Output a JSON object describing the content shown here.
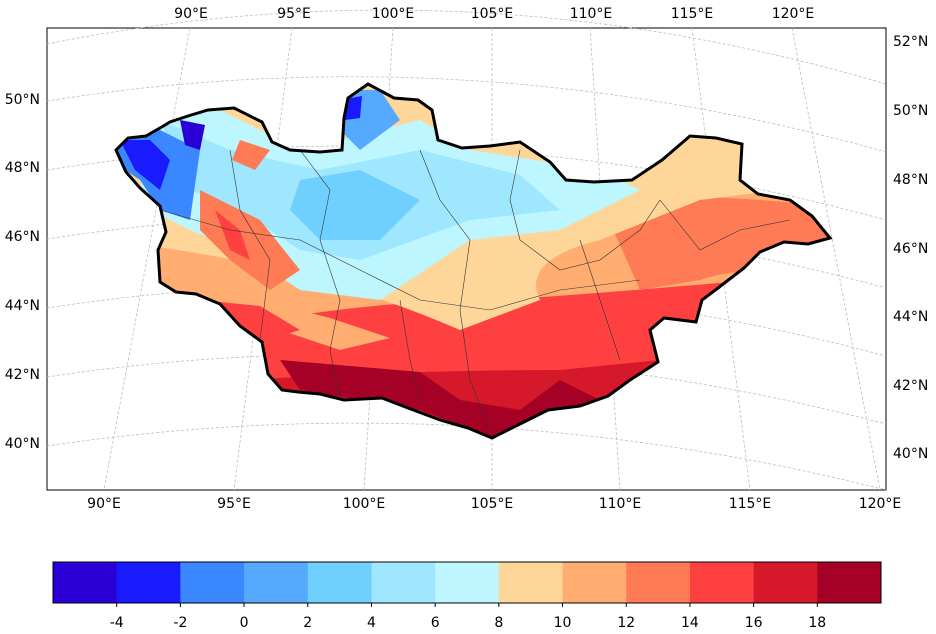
{
  "map": {
    "top_lon_labels": [
      "90°E",
      "95°E",
      "100°E",
      "105°E",
      "110°E",
      "115°E",
      "120°E"
    ],
    "bottom_lon_labels": [
      "90°E",
      "95°E",
      "100°E",
      "105°E",
      "110°E",
      "115°E",
      "120°E"
    ],
    "left_lat_labels": [
      "50°N",
      "48°N",
      "46°N",
      "44°N",
      "42°N",
      "40°N"
    ],
    "right_lat_labels": [
      "52°N",
      "50°N",
      "48°N",
      "46°N",
      "44°N",
      "42°N",
      "40°N"
    ],
    "projection": "conic (curved graticule)",
    "gridlines": true,
    "region": "Mongolia"
  },
  "colorbar": {
    "colors": [
      "#2a00d6",
      "#1a1aff",
      "#3a87ff",
      "#55aaff",
      "#6fd0ff",
      "#9ee7ff",
      "#bdf6ff",
      "#ffd699",
      "#ffad70",
      "#ff7b55",
      "#ff4040",
      "#d5192b",
      "#a50026"
    ],
    "tick_labels": [
      "-4",
      "-2",
      "0",
      "2",
      "4",
      "6",
      "8",
      "10",
      "12",
      "14",
      "16",
      "18"
    ]
  }
}
